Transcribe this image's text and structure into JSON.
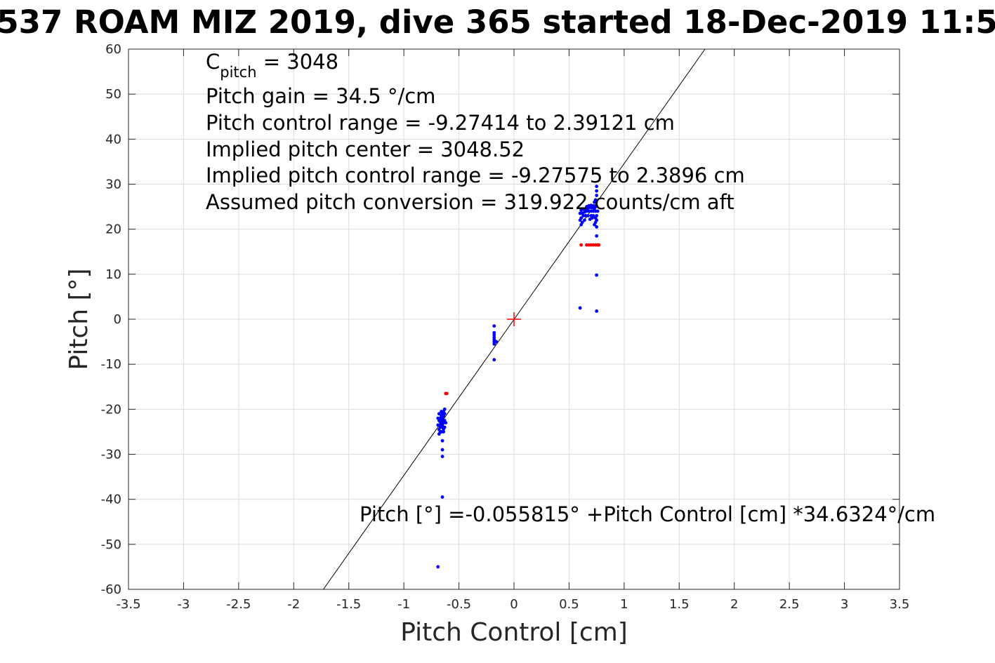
{
  "chart_data": {
    "type": "scatter",
    "title": "537 ROAM MIZ 2019, dive 365 started 18-Dec-2019 11:5",
    "xlabel": "Pitch Control [cm]",
    "ylabel": "Pitch [°]",
    "xlim": [
      -3.5,
      3.5
    ],
    "ylim": [
      -60,
      60
    ],
    "xticks": [
      "-3.5",
      "-3",
      "-2.5",
      "-2",
      "-1.5",
      "-1",
      "-0.5",
      "0",
      "0.5",
      "1",
      "1.5",
      "2",
      "2.5",
      "3",
      "3.5"
    ],
    "yticks": [
      "-60",
      "-50",
      "-40",
      "-30",
      "-20",
      "-10",
      "0",
      "10",
      "20",
      "30",
      "40",
      "50",
      "60"
    ],
    "grid": true,
    "annotations": {
      "c_pitch": {
        "main": "C",
        "sub": "pitch",
        "rest": " = 3048"
      },
      "lines": [
        "Pitch gain = 34.5 °/cm",
        "Pitch control range = -9.27414 to 2.39121 cm",
        "Implied pitch center = 3048.52",
        "Implied pitch control range = -9.27575 to 2.3896 cm",
        "Assumed pitch conversion = 319.922 counts/cm aft"
      ],
      "fit_equation": "Pitch [°] =-0.055815° +Pitch Control [cm] *34.6324°/cm"
    },
    "fit_line": {
      "intercept": -0.055815,
      "slope": 34.6324,
      "color": "#000000"
    },
    "center_marker": {
      "x": 0,
      "y": 0,
      "color": "#ff0000"
    },
    "series": [
      {
        "color": "#0000ff",
        "points": [
          [
            -0.69,
            -55
          ],
          [
            -0.65,
            -39.5
          ],
          [
            -0.65,
            -30.5
          ],
          [
            -0.65,
            -29
          ],
          [
            -0.65,
            -27
          ],
          [
            -0.68,
            -25.5
          ],
          [
            -0.67,
            -25
          ],
          [
            -0.66,
            -25
          ],
          [
            -0.64,
            -25
          ],
          [
            -0.68,
            -24.5
          ],
          [
            -0.67,
            -24
          ],
          [
            -0.65,
            -24
          ],
          [
            -0.63,
            -24
          ],
          [
            -0.69,
            -23.5
          ],
          [
            -0.67,
            -23.5
          ],
          [
            -0.66,
            -23
          ],
          [
            -0.64,
            -23
          ],
          [
            -0.62,
            -23
          ],
          [
            -0.68,
            -22.5
          ],
          [
            -0.66,
            -22.5
          ],
          [
            -0.63,
            -22.5
          ],
          [
            -0.69,
            -22
          ],
          [
            -0.67,
            -22
          ],
          [
            -0.65,
            -22
          ],
          [
            -0.64,
            -21.5
          ],
          [
            -0.66,
            -21.5
          ],
          [
            -0.68,
            -21
          ],
          [
            -0.65,
            -21
          ],
          [
            -0.63,
            -21
          ],
          [
            -0.64,
            -20.5
          ],
          [
            -0.63,
            -20
          ],
          [
            -0.66,
            -20.5
          ],
          [
            -0.67,
            -22.8
          ],
          [
            -0.65,
            -23.6
          ],
          [
            -0.64,
            -24.4
          ],
          [
            -0.18,
            -9
          ],
          [
            -0.18,
            -5.5
          ],
          [
            -0.18,
            -5
          ],
          [
            -0.18,
            -4.5
          ],
          [
            -0.18,
            -4
          ],
          [
            -0.18,
            -3.5
          ],
          [
            -0.18,
            -3
          ],
          [
            -0.18,
            -1.5
          ],
          [
            -0.16,
            -5
          ],
          [
            0.6,
            2.5
          ],
          [
            0.75,
            1.8
          ],
          [
            0.75,
            9.8
          ],
          [
            0.75,
            18.5
          ],
          [
            0.75,
            20.5
          ],
          [
            0.61,
            21
          ],
          [
            0.62,
            21.5
          ],
          [
            0.6,
            22
          ],
          [
            0.64,
            22
          ],
          [
            0.73,
            21
          ],
          [
            0.74,
            21.5
          ],
          [
            0.61,
            22.5
          ],
          [
            0.63,
            23
          ],
          [
            0.65,
            23
          ],
          [
            0.67,
            23
          ],
          [
            0.7,
            23
          ],
          [
            0.72,
            23
          ],
          [
            0.74,
            22.5
          ],
          [
            0.6,
            23.5
          ],
          [
            0.62,
            23.5
          ],
          [
            0.64,
            23.8
          ],
          [
            0.66,
            24
          ],
          [
            0.68,
            24
          ],
          [
            0.7,
            24
          ],
          [
            0.72,
            24
          ],
          [
            0.74,
            24
          ],
          [
            0.61,
            24.2
          ],
          [
            0.63,
            24.5
          ],
          [
            0.65,
            24.5
          ],
          [
            0.67,
            24.6
          ],
          [
            0.69,
            24.8
          ],
          [
            0.71,
            24.8
          ],
          [
            0.73,
            24.5
          ],
          [
            0.66,
            25
          ],
          [
            0.68,
            25.2
          ],
          [
            0.7,
            25.3
          ],
          [
            0.72,
            25.2
          ],
          [
            0.74,
            25
          ],
          [
            0.73,
            26
          ],
          [
            0.74,
            26.5
          ],
          [
            0.75,
            27.5
          ],
          [
            0.75,
            28.5
          ],
          [
            0.75,
            29.5
          ],
          [
            0.71,
            22.5
          ],
          [
            0.69,
            22.2
          ],
          [
            0.75,
            22
          ],
          [
            0.75,
            23
          ],
          [
            0.76,
            24
          ]
        ]
      },
      {
        "color": "#ff0000",
        "points": [
          [
            -0.62,
            -16.5
          ],
          [
            -0.61,
            -16.5
          ],
          [
            0.61,
            16.5
          ],
          [
            0.66,
            16.5
          ],
          [
            0.68,
            16.5
          ],
          [
            0.7,
            16.5
          ],
          [
            0.72,
            16.5
          ],
          [
            0.74,
            16.5
          ],
          [
            0.76,
            16.5
          ],
          [
            0.77,
            16.5
          ]
        ]
      }
    ]
  }
}
